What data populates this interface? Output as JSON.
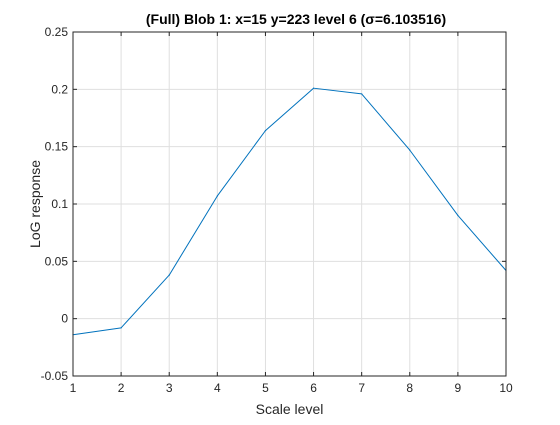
{
  "chart_data": {
    "type": "line",
    "title": "(Full) Blob 1: x=15 y=223 level 6 (σ=6.103516)",
    "xlabel": "Scale level",
    "ylabel": "LoG response",
    "xlim": [
      1,
      10
    ],
    "ylim": [
      -0.05,
      0.25
    ],
    "grid": true,
    "x_ticks": [
      1,
      2,
      3,
      4,
      5,
      6,
      7,
      8,
      9,
      10
    ],
    "x_tick_labels": [
      "1",
      "2",
      "3",
      "4",
      "5",
      "6",
      "7",
      "8",
      "9",
      "10"
    ],
    "y_ticks": [
      -0.05,
      0,
      0.05,
      0.1,
      0.15,
      0.2,
      0.25
    ],
    "y_tick_labels": [
      "-0.05",
      "0",
      "0.05",
      "0.1",
      "0.15",
      "0.2",
      "0.25"
    ],
    "series": [
      {
        "color": "#0072bd",
        "x": [
          1,
          2,
          3,
          4,
          5,
          6,
          7,
          8,
          9,
          10
        ],
        "y": [
          -0.014,
          -0.008,
          0.038,
          0.107,
          0.164,
          0.201,
          0.196,
          0.147,
          0.09,
          0.042
        ]
      }
    ]
  }
}
